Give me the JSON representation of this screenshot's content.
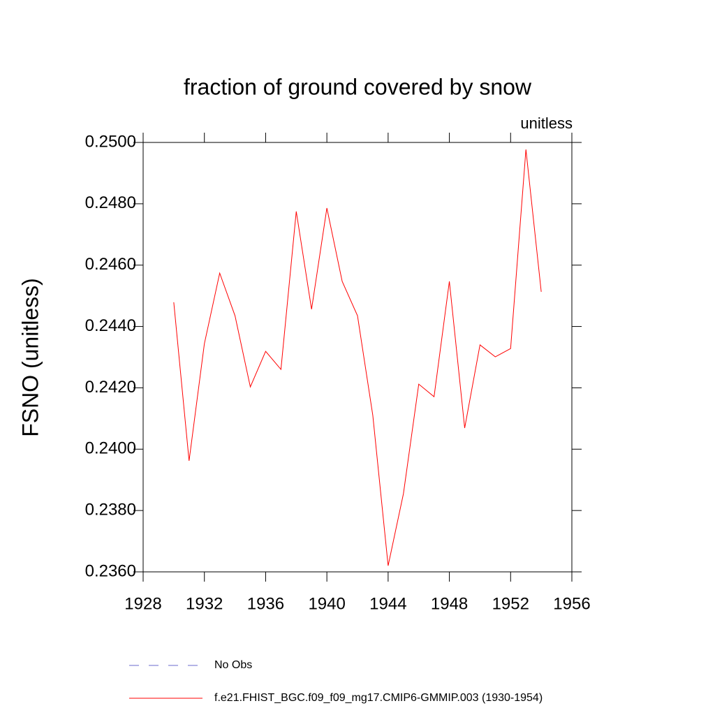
{
  "chart_data": {
    "type": "line",
    "title": "fraction of ground covered by snow",
    "subtitle": "unitless",
    "y_label": "FSNO  (unitless)",
    "x": [
      1930,
      1931,
      1932,
      1933,
      1934,
      1935,
      1936,
      1937,
      1938,
      1939,
      1940,
      1941,
      1942,
      1943,
      1944,
      1945,
      1946,
      1947,
      1948,
      1949,
      1950,
      1951,
      1952,
      1953,
      1954
    ],
    "series": [
      {
        "name": "No Obs",
        "color": "#6a6acd",
        "dash": true,
        "values": [
          null,
          null,
          null,
          null,
          null,
          null,
          null,
          null,
          null,
          null,
          null,
          null,
          null,
          null,
          null,
          null,
          null,
          null,
          null,
          null,
          null,
          null,
          null,
          null,
          null
        ]
      },
      {
        "name": "f.e21.FHIST_BGC.f09_f09_mg17.CMIP6-GMMIP.003 (1930-1954)",
        "color": "#ff0000",
        "dash": false,
        "values": [
          0.24479,
          0.23962,
          0.24344,
          0.24574,
          0.24435,
          0.24203,
          0.24319,
          0.2426,
          0.24775,
          0.24456,
          0.24786,
          0.24547,
          0.24435,
          0.2411,
          0.2362,
          0.23855,
          0.24212,
          0.24171,
          0.24547,
          0.24069,
          0.2434,
          0.24301,
          0.24328,
          0.24977,
          0.24513
        ]
      }
    ],
    "xlim": [
      1928,
      1956
    ],
    "xticks": [
      1928,
      1932,
      1936,
      1940,
      1944,
      1948,
      1952,
      1956
    ],
    "ylim": [
      0.236,
      0.25
    ],
    "yticks": [
      {
        "value": 0.236,
        "label": "0.2360"
      },
      {
        "value": 0.238,
        "label": "0.2380"
      },
      {
        "value": 0.24,
        "label": "0.2400"
      },
      {
        "value": 0.242,
        "label": "0.2420"
      },
      {
        "value": 0.244,
        "label": "0.2440"
      },
      {
        "value": 0.246,
        "label": "0.2460"
      },
      {
        "value": 0.248,
        "label": "0.2480"
      },
      {
        "value": 0.25,
        "label": "0.2500"
      }
    ],
    "grid": false
  }
}
